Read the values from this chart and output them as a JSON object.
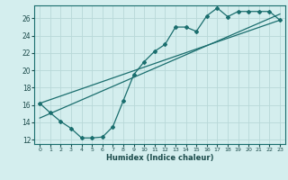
{
  "title": "",
  "xlabel": "Humidex (Indice chaleur)",
  "bg_color": "#d4eeee",
  "grid_color": "#b8d8d8",
  "line_color": "#1a6e6e",
  "xlim": [
    -0.5,
    23.5
  ],
  "ylim": [
    11.5,
    27.5
  ],
  "xticks": [
    0,
    1,
    2,
    3,
    4,
    5,
    6,
    7,
    8,
    9,
    10,
    11,
    12,
    13,
    14,
    15,
    16,
    17,
    18,
    19,
    20,
    21,
    22,
    23
  ],
  "yticks": [
    12,
    14,
    16,
    18,
    20,
    22,
    24,
    26
  ],
  "curve_x": [
    0,
    1,
    2,
    3,
    4,
    5,
    6,
    7,
    8,
    9,
    10,
    11,
    12,
    13,
    14,
    15,
    16,
    17,
    18,
    19,
    20,
    21,
    22,
    23
  ],
  "curve_y": [
    16.2,
    15.1,
    14.1,
    13.3,
    12.2,
    12.2,
    12.3,
    13.5,
    16.5,
    19.5,
    21.0,
    22.2,
    23.0,
    25.0,
    25.0,
    24.5,
    26.3,
    27.2,
    26.2,
    26.8,
    26.8,
    26.8,
    26.8,
    25.8
  ],
  "line1_x": [
    0,
    23
  ],
  "line1_y": [
    16.2,
    25.8
  ],
  "line2_x": [
    0,
    23
  ],
  "line2_y": [
    14.5,
    26.5
  ]
}
